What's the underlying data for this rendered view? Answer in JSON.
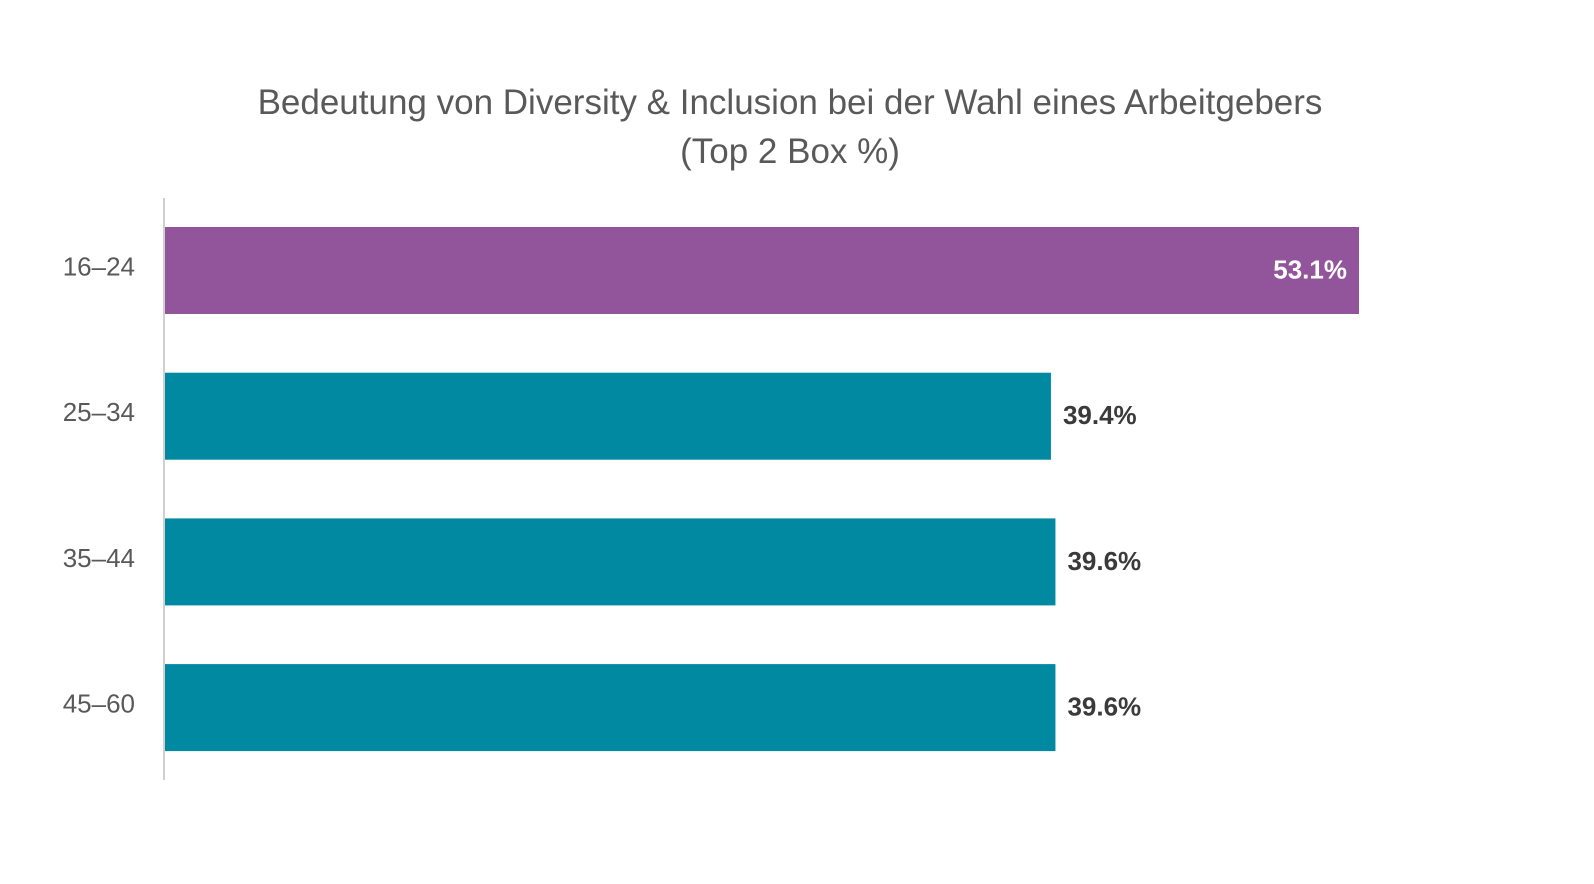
{
  "chart_data": {
    "type": "bar",
    "orientation": "horizontal",
    "title": "Bedeutung von Diversity & Inclusion bei der Wahl eines Arbeitgebers",
    "subtitle": "(Top 2 Box %)",
    "categories": [
      "16–24",
      "25–34",
      "35–44",
      "45–60"
    ],
    "values": [
      53.1,
      39.4,
      39.6,
      39.6
    ],
    "value_labels": [
      "53.1%",
      "39.4%",
      "39.6%",
      "39.6%"
    ],
    "highlight_index": 0,
    "colors": {
      "highlight": "#92559B",
      "default": "#0089A1",
      "label_inside": "#ffffff",
      "label_outside": "#3a3a3a",
      "axis": "#d0d0d0"
    },
    "xlim": [
      0,
      60
    ],
    "xlabel": "",
    "ylabel": "",
    "grid": false,
    "legend": false
  }
}
